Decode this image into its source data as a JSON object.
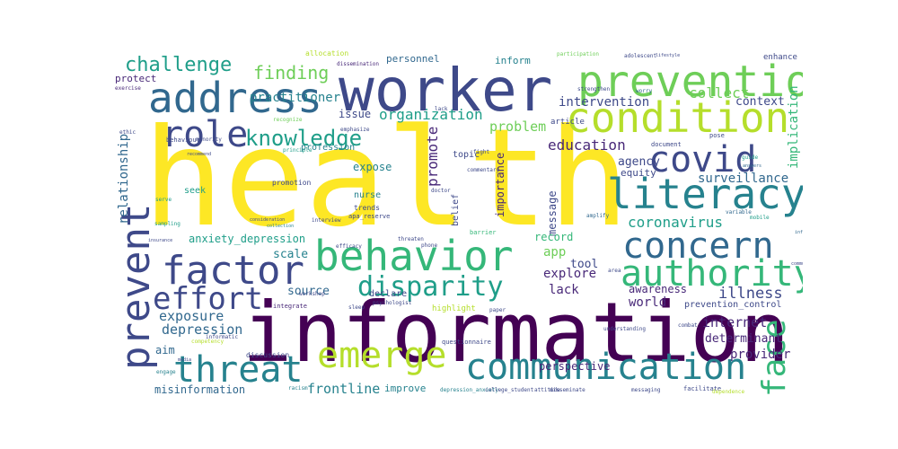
{
  "palette": {
    "yellow": "#fde725",
    "yellowgreen": "#b5de2b",
    "lightgreen": "#6ece58",
    "green": "#35b779",
    "teal": "#1f9e89",
    "tealblue": "#26828e",
    "blue": "#31688e",
    "indigo": "#3e4989",
    "purple": "#482878",
    "darkpurple": "#440154"
  },
  "words": {
    "health": "health",
    "information": "information",
    "worker": "worker",
    "prevention": "prevention",
    "condition": "condition",
    "address": "address",
    "literacy": "literacy",
    "behavior": "behavior",
    "communication": "communication",
    "concern": "concern",
    "authority": "authority",
    "covid": "covid",
    "factor": "factor",
    "threat": "threat",
    "emerge": "emerge",
    "disparity": "disparity",
    "prevent": "prevent",
    "effort": "effort",
    "role": "role",
    "knowledge": "knowledge",
    "face": "face",
    "challenge": "challenge",
    "finding": "finding",
    "practitioner": "practitioner",
    "organization": "organization",
    "problem": "problem",
    "promote": "promote",
    "education": "education",
    "collect": "collect",
    "intervention": "intervention",
    "context": "context",
    "implication": "implication",
    "surveillance": "surveillance",
    "coronavirus": "coronavirus",
    "illness": "illness",
    "exposure": "exposure",
    "depression": "depression",
    "relationship": "relationship",
    "anxiety_depression": "anxiety_depression",
    "internet": "internet",
    "determinant": "determinant",
    "provider": "provider",
    "frontline": "frontline",
    "misinformation": "misinformation",
    "perspective": "perspective",
    "source": "source",
    "explore": "explore",
    "lack": "lack",
    "world": "world",
    "awareness": "awareness",
    "importance": "importance",
    "agency": "agency",
    "equity": "equity",
    "message": "message",
    "record": "record",
    "tool": "tool",
    "app": "app",
    "scale": "scale",
    "aim": "aim",
    "issue": "issue",
    "expose": "expose",
    "personnel": "personnel",
    "inform": "inform",
    "protect": "protect",
    "topic": "topic",
    "belief": "belief",
    "article": "article",
    "allocation": "allocation",
    "participation": "participation",
    "adolescent": "adolescent",
    "lifestyle": "lifestyle",
    "enhance": "enhance",
    "dissemination": "dissemination",
    "strengthen": "strengthen",
    "worry": "worry",
    "exercise": "exercise",
    "emphasize": "emphasize",
    "profession": "profession",
    "principle": "principle",
    "recommend": "recommend",
    "promotion": "promotion",
    "nurse": "nurse",
    "trends": "trends",
    "seek": "seek",
    "declare": "declare",
    "highlight": "highlight",
    "improve": "improve",
    "prevention_control": "prevention_control",
    "document": "document",
    "pose": "pose",
    "guide": "guide",
    "answers": "answers",
    "mobile": "mobile",
    "variable": "variable",
    "sampling": "sampling",
    "insurance": "insurance",
    "efficacy": "efficacy",
    "threaten": "threaten",
    "barrier": "barrier",
    "combat": "combat",
    "facilitate": "facilitate",
    "dependence": "dependence",
    "questionnaire": "questionnaire",
    "depression_anxiety": "depression_anxiety",
    "college_student": "college_student",
    "attitude": "attitude",
    "disseminate": "disseminate",
    "messaging": "messaging",
    "racism": "racism",
    "discussion": "discussion",
    "competency": "competency",
    "engage": "engage",
    "media": "media",
    "integrate": "integrate",
    "sleep": "sleep",
    "workshop": "workshop",
    "apa_reserve": "apa_reserve",
    "interview": "interview",
    "consideration": "consideration",
    "collection": "collection",
    "doctor": "doctor",
    "phone": "phone",
    "commentary": "commentary",
    "lack2": "lack",
    "fight": "fight",
    "behaviour": "behaviour",
    "minority": "minority",
    "recognize": "recognize",
    "ethic": "ethic",
    "area": "area",
    "understanding": "understanding",
    "amplify": "amplify",
    "influence": "influence",
    "communicate": "communicate",
    "psychologist": "psychologist",
    "serve": "serve",
    "informatic": "informatic",
    "paper": "paper"
  }
}
